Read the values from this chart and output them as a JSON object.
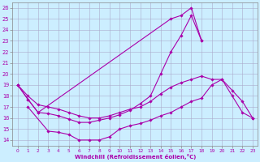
{
  "xlabel": "Windchill (Refroidissement éolien,°C)",
  "background_color": "#cceeff",
  "grid_color": "#aaaacc",
  "line_color": "#aa00aa",
  "xlim": [
    -0.5,
    23.5
  ],
  "ylim": [
    13.5,
    26.5
  ],
  "yticks": [
    14,
    15,
    16,
    17,
    18,
    19,
    20,
    21,
    22,
    23,
    24,
    25,
    26
  ],
  "xticks": [
    0,
    1,
    2,
    3,
    4,
    5,
    6,
    7,
    8,
    9,
    10,
    11,
    12,
    13,
    14,
    15,
    16,
    17,
    18,
    19,
    20,
    21,
    22,
    23
  ],
  "series": [
    {
      "x": [
        0,
        1,
        2,
        3,
        4,
        5,
        6,
        7,
        8,
        9,
        10,
        11,
        12,
        13,
        14,
        15,
        16,
        17,
        18,
        19,
        20,
        21,
        22,
        23
      ],
      "y": [
        19,
        17.7,
        16.5,
        null,
        null,
        null,
        null,
        null,
        null,
        null,
        null,
        null,
        null,
        null,
        null,
        25.0,
        25.3,
        26.0,
        23.0,
        null,
        null,
        null,
        null,
        null
      ]
    },
    {
      "x": [
        0,
        1,
        2,
        3,
        4,
        5,
        6,
        7,
        8,
        9,
        10,
        11,
        12,
        13,
        14,
        15,
        16,
        17,
        18,
        19,
        20,
        21,
        22,
        23
      ],
      "y": [
        19,
        17.7,
        16.5,
        16.4,
        16.2,
        15.9,
        15.6,
        15.6,
        15.8,
        16.0,
        16.3,
        16.7,
        17.3,
        18.0,
        20.0,
        22.0,
        23.5,
        25.3,
        23.0,
        null,
        null,
        null,
        null,
        null
      ]
    },
    {
      "x": [
        0,
        1,
        2,
        3,
        4,
        5,
        6,
        7,
        8,
        9,
        10,
        11,
        12,
        13,
        14,
        15,
        16,
        17,
        18,
        19,
        20,
        21,
        22,
        23
      ],
      "y": [
        null,
        17.0,
        null,
        14.8,
        14.7,
        14.5,
        14.0,
        14.0,
        14.0,
        14.3,
        15.0,
        15.3,
        15.5,
        15.8,
        16.2,
        16.5,
        17.0,
        17.5,
        17.8,
        19.0,
        19.5,
        18.5,
        17.5,
        16.0
      ]
    },
    {
      "x": [
        0,
        1,
        2,
        3,
        4,
        5,
        6,
        7,
        8,
        9,
        10,
        11,
        12,
        13,
        14,
        15,
        16,
        17,
        18,
        19,
        20,
        21,
        22,
        23
      ],
      "y": [
        19,
        18.0,
        17.2,
        17.0,
        16.8,
        16.5,
        16.2,
        16.0,
        16.0,
        16.2,
        16.5,
        16.8,
        17.0,
        17.5,
        18.2,
        18.8,
        19.2,
        19.5,
        19.8,
        19.5,
        19.5,
        18.0,
        16.5,
        16.0
      ]
    }
  ]
}
